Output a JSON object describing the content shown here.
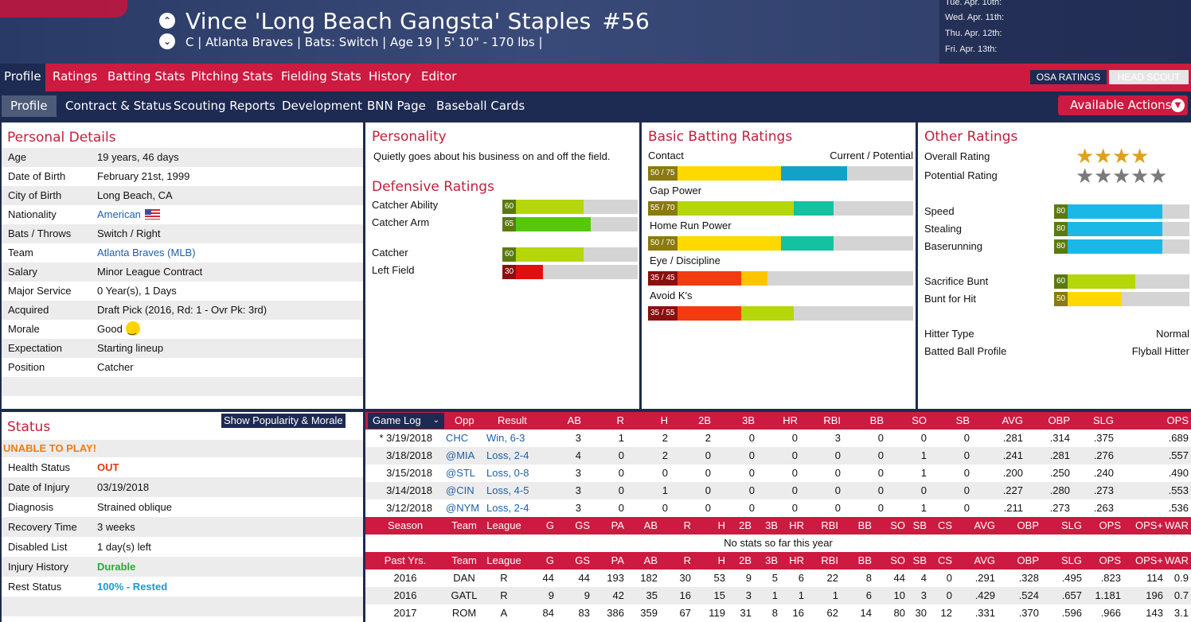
{
  "header": {
    "player_name": "Vince 'Long Beach Gangsta' Staples",
    "number": "#56",
    "info": "C | Atlanta Braves  |  Bats: Switch  |  Age 19  |  5' 10\" - 170 lbs  |",
    "schedule": [
      "Tue. Apr. 10th:",
      "Wed. Apr. 11th:",
      "Thu. Apr. 12th:",
      "Fri. Apr. 13th:"
    ]
  },
  "nav_main": [
    "Profile",
    "Ratings",
    "Batting Stats",
    "Pitching Stats",
    "Fielding Stats",
    "History",
    "Editor"
  ],
  "rating_source": {
    "osa": "OSA RATINGS",
    "scout": "HEAD SCOUT"
  },
  "nav_sub": [
    "Profile",
    "Contract & Status",
    "Scouting Reports",
    "Development",
    "BNN Page",
    "Baseball Cards"
  ],
  "available_actions": "Available Actions",
  "personal": {
    "title": "Personal Details",
    "rows": [
      {
        "label": "Age",
        "value": "19 years, 46 days"
      },
      {
        "label": "Date of Birth",
        "value": "February 21st, 1999"
      },
      {
        "label": "City of Birth",
        "value": "Long Beach, CA"
      },
      {
        "label": "Nationality",
        "value": "American"
      },
      {
        "label": "Bats / Throws",
        "value": "Switch / Right"
      },
      {
        "label": "Team",
        "value": "Atlanta Braves (MLB)"
      },
      {
        "label": "Salary",
        "value": "Minor League Contract"
      },
      {
        "label": "Major Service",
        "value": "0 Year(s), 1 Days"
      },
      {
        "label": "Acquired",
        "value": "Draft Pick (2016, Rd: 1 - Ovr Pk: 3rd)"
      },
      {
        "label": "Morale",
        "value": "Good"
      },
      {
        "label": "Expectation",
        "value": "Starting lineup"
      },
      {
        "label": "Position",
        "value": "Catcher"
      }
    ]
  },
  "personality": {
    "title": "Personality",
    "text": "Quietly goes about his business on and off the field."
  },
  "defensive": {
    "title": "Defensive Ratings",
    "rows": [
      {
        "label": "Catcher Ability",
        "value": 60,
        "color": "#b5d60a"
      },
      {
        "label": "Catcher Arm",
        "value": 65,
        "color": "#55c80a"
      },
      {
        "label": "Catcher",
        "value": 60,
        "color": "#b5d60a"
      },
      {
        "label": "Left Field",
        "value": 30,
        "color": "#e01010"
      }
    ]
  },
  "batting": {
    "title": "Basic Batting Ratings",
    "cur_pot_label": "Current / Potential",
    "rows": [
      {
        "label": "Contact",
        "text": "50 / 75",
        "current": 50,
        "potential": 75,
        "cur_color": "#ffd800",
        "pot_color": "#12a2c8"
      },
      {
        "label": "Gap Power",
        "text": "55 / 70",
        "current": 55,
        "potential": 70,
        "cur_color": "#b5d60a",
        "pot_color": "#14c2a0"
      },
      {
        "label": "Home Run Power",
        "text": "50 / 70",
        "current": 50,
        "potential": 70,
        "cur_color": "#ffd800",
        "pot_color": "#14c2a0"
      },
      {
        "label": "Eye / Discipline",
        "text": "35 / 45",
        "current": 35,
        "potential": 45,
        "cur_color": "#f23c10",
        "pot_color": "#ffc400"
      },
      {
        "label": "Avoid K's",
        "text": "35 / 55",
        "current": 35,
        "potential": 55,
        "cur_color": "#f23c10",
        "pot_color": "#b5d60a"
      }
    ]
  },
  "other": {
    "title": "Other Ratings",
    "overall_label": "Overall Rating",
    "overall_stars": 4,
    "potential_label": "Potential Rating",
    "potential_stars": 5,
    "running": [
      {
        "label": "Speed",
        "value": 80,
        "color": "#1ab8e8"
      },
      {
        "label": "Stealing",
        "value": 80,
        "color": "#1ab8e8"
      },
      {
        "label": "Baserunning",
        "value": 80,
        "color": "#1ab8e8"
      }
    ],
    "bunting": [
      {
        "label": "Sacrifice Bunt",
        "value": 60,
        "color": "#b5d60a"
      },
      {
        "label": "Bunt for Hit",
        "value": 50,
        "color": "#ffd800"
      }
    ],
    "hitter_type_label": "Hitter Type",
    "hitter_type": "Normal",
    "batted_ball_label": "Batted Ball Profile",
    "batted_ball": "Flyball Hitter"
  },
  "status": {
    "title": "Status",
    "popularity_btn": "Show Popularity & Morale",
    "warning": "UNABLE TO PLAY!",
    "rows": [
      {
        "label": "Health Status",
        "value": "OUT",
        "color": "#e23a12"
      },
      {
        "label": "Date of Injury",
        "value": "03/19/2018",
        "color": "#111111"
      },
      {
        "label": "Diagnosis",
        "value": "Strained oblique",
        "color": "#111111"
      },
      {
        "label": "Recovery Time",
        "value": "3 weeks",
        "color": "#111111"
      },
      {
        "label": "Disabled List",
        "value": "1 day(s) left",
        "color": "#111111"
      },
      {
        "label": "Injury History",
        "value": "Durable",
        "color": "#2aa83a"
      },
      {
        "label": "Rest Status",
        "value": "100% - Rested",
        "color": "#1a9ad0"
      }
    ]
  },
  "game_log": {
    "selector": "Game Log",
    "columns": [
      "Opp",
      "Result",
      "AB",
      "R",
      "H",
      "2B",
      "3B",
      "HR",
      "RBI",
      "BB",
      "SO",
      "SB",
      "AVG",
      "OBP",
      "SLG",
      "OPS"
    ],
    "rows": [
      {
        "date": "* 3/19/2018",
        "opp": "CHC",
        "result": "Win, 6-3",
        "stats": [
          "3",
          "1",
          "2",
          "2",
          "0",
          "0",
          "3",
          "0",
          "0",
          "0",
          ".281",
          ".314",
          ".375",
          ".689"
        ]
      },
      {
        "date": "3/18/2018",
        "opp": "@MIA",
        "result": "Loss, 2-4",
        "stats": [
          "4",
          "0",
          "2",
          "0",
          "0",
          "0",
          "0",
          "0",
          "1",
          "0",
          ".241",
          ".281",
          ".276",
          ".557"
        ]
      },
      {
        "date": "3/15/2018",
        "opp": "@STL",
        "result": "Loss, 0-8",
        "stats": [
          "3",
          "0",
          "0",
          "0",
          "0",
          "0",
          "0",
          "0",
          "1",
          "0",
          ".200",
          ".250",
          ".240",
          ".490"
        ]
      },
      {
        "date": "3/14/2018",
        "opp": "@CIN",
        "result": "Loss, 4-5",
        "stats": [
          "3",
          "0",
          "1",
          "0",
          "0",
          "0",
          "0",
          "0",
          "0",
          "0",
          ".227",
          ".280",
          ".273",
          ".553"
        ]
      },
      {
        "date": "3/12/2018",
        "opp": "@NYM",
        "result": "Loss, 2-4",
        "stats": [
          "3",
          "0",
          "0",
          "0",
          "0",
          "0",
          "0",
          "0",
          "1",
          "0",
          ".211",
          ".273",
          ".263",
          ".536"
        ]
      }
    ]
  },
  "season": {
    "columns": [
      "Season",
      "Team",
      "League",
      "G",
      "GS",
      "PA",
      "AB",
      "R",
      "H",
      "2B",
      "3B",
      "HR",
      "RBI",
      "BB",
      "SO",
      "SB",
      "CS",
      "AVG",
      "OBP",
      "SLG",
      "OPS",
      "OPS+",
      "WAR"
    ],
    "empty": "No stats so far this year"
  },
  "past": {
    "columns": [
      "Past Yrs.",
      "Team",
      "League",
      "G",
      "GS",
      "PA",
      "AB",
      "R",
      "H",
      "2B",
      "3B",
      "HR",
      "RBI",
      "BB",
      "SO",
      "SB",
      "CS",
      "AVG",
      "OBP",
      "SLG",
      "OPS",
      "OPS+",
      "WAR"
    ],
    "rows": [
      [
        "2016",
        "DAN",
        "R",
        "44",
        "44",
        "193",
        "182",
        "30",
        "53",
        "9",
        "5",
        "6",
        "22",
        "8",
        "44",
        "4",
        "0",
        ".291",
        ".328",
        ".495",
        ".823",
        "114",
        "0.9"
      ],
      [
        "2016",
        "GATL",
        "R",
        "9",
        "9",
        "42",
        "35",
        "16",
        "15",
        "3",
        "1",
        "1",
        "1",
        "6",
        "10",
        "3",
        "0",
        ".429",
        ".524",
        ".657",
        "1.181",
        "196",
        "0.7"
      ],
      [
        "2017",
        "ROM",
        "A",
        "84",
        "83",
        "386",
        "359",
        "67",
        "119",
        "31",
        "8",
        "16",
        "62",
        "14",
        "80",
        "30",
        "12",
        ".331",
        ".370",
        ".596",
        ".966",
        "143",
        "3.1"
      ]
    ]
  }
}
